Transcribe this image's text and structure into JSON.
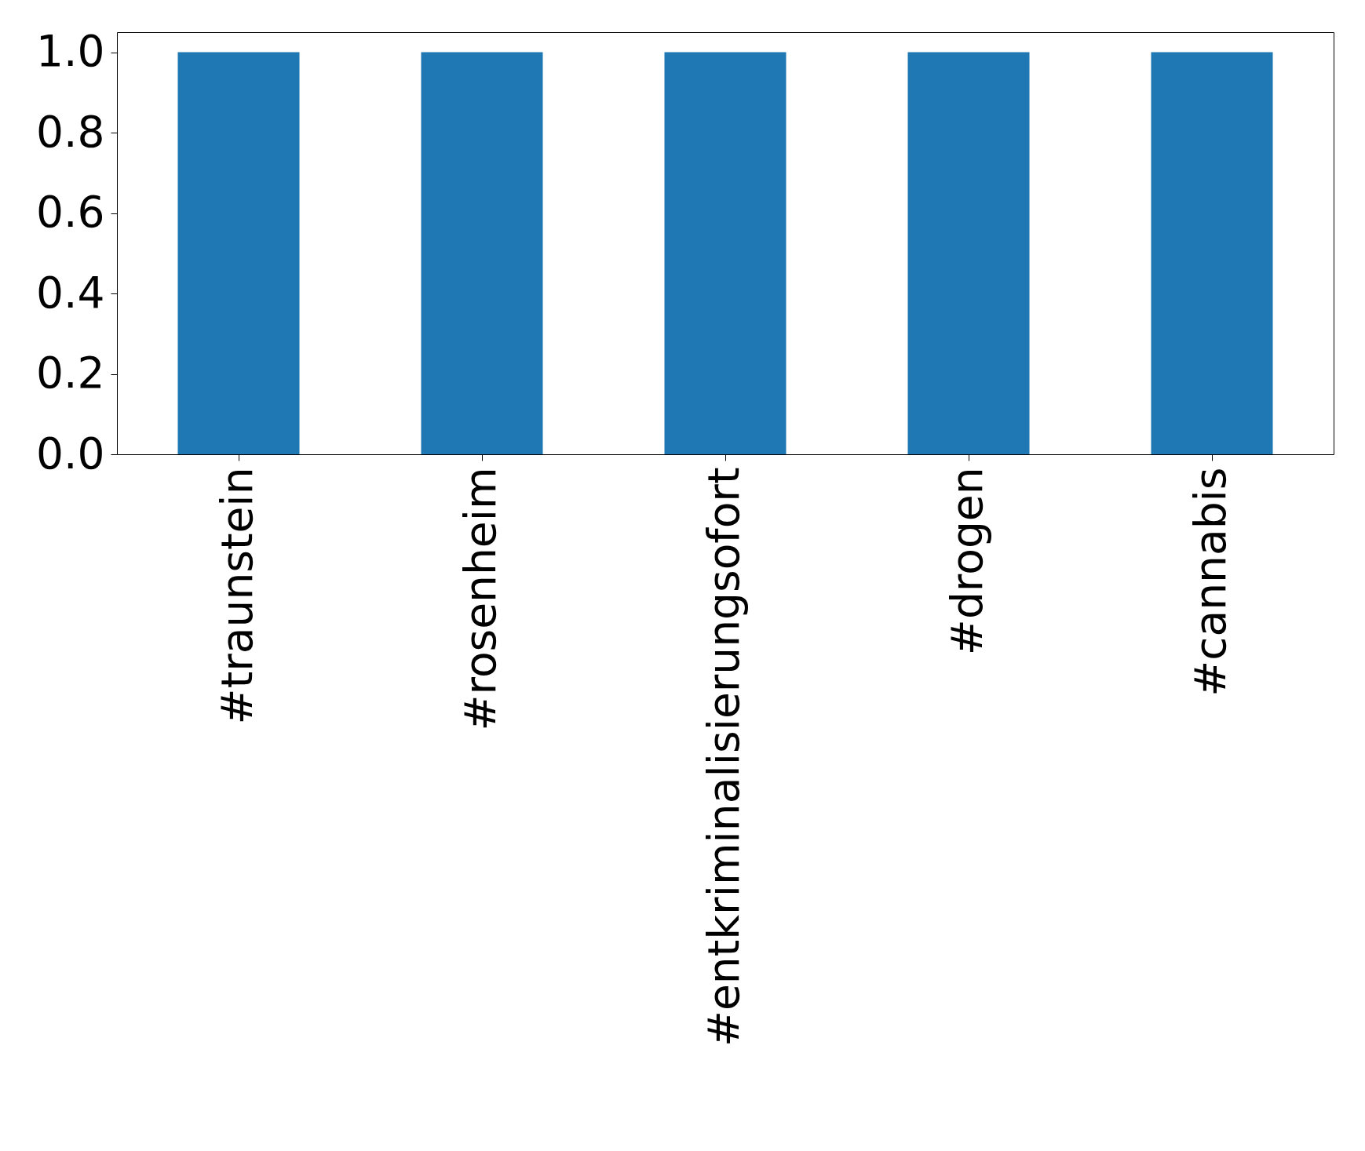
{
  "chart_data": {
    "type": "bar",
    "categories": [
      "#traunstein",
      "#rosenheim",
      "#entkriminalisierungsofort",
      "#drogen",
      "#cannabis"
    ],
    "values": [
      1.0,
      1.0,
      1.0,
      1.0,
      1.0
    ],
    "color": "#1f77b4",
    "ylim": [
      0,
      1.05
    ],
    "yticks": [
      {
        "value": 0,
        "label": "0.0"
      },
      0.2,
      0.4,
      0.6,
      0.8,
      {
        "value": 1,
        "label": "1.0"
      }
    ],
    "grid": false
  }
}
